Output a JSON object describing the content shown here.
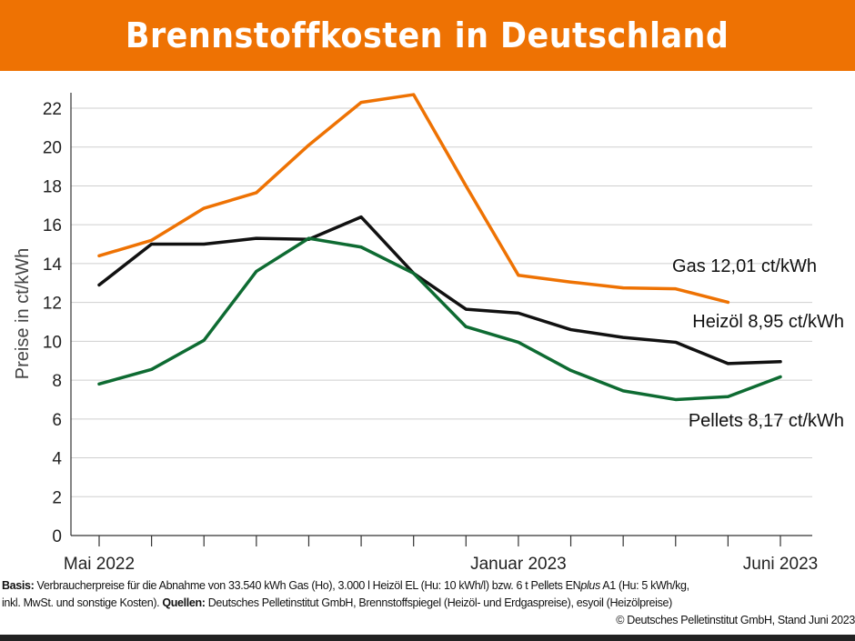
{
  "title": "Brennstoffkosten in Deutschland",
  "colors": {
    "header": "#ee7203",
    "gas": "#ee7203",
    "heizoel": "#111111",
    "pellets": "#0e6b32",
    "grid": "#cfcfcf"
  },
  "chart_data": {
    "type": "line",
    "title": "Brennstoffkosten in Deutschland",
    "ylabel": "Preise in ct/kWh",
    "xlabel": "",
    "ylim": [
      0,
      22.7
    ],
    "yticks": [
      0,
      2,
      4,
      6,
      8,
      10,
      12,
      14,
      16,
      18,
      20,
      22
    ],
    "grid": true,
    "x": [
      "2022-05",
      "2022-06",
      "2022-07",
      "2022-08",
      "2022-09",
      "2022-10",
      "2022-11",
      "2022-12",
      "2023-01",
      "2023-02",
      "2023-03",
      "2023-04",
      "2023-05",
      "2023-06"
    ],
    "xtick_labels": [
      {
        "index": 0,
        "label": "Mai 2022"
      },
      {
        "index": 8,
        "label": "Januar 2023"
      },
      {
        "index": 13,
        "label": "Juni 2023"
      }
    ],
    "series": [
      {
        "name": "Gas",
        "key": "gas",
        "label": "Gas 12,01 ct/kWh",
        "values": [
          14.4,
          15.2,
          16.85,
          17.65,
          20.1,
          22.3,
          22.7,
          18.0,
          13.4,
          13.05,
          12.75,
          12.7,
          12.01,
          null
        ]
      },
      {
        "name": "Heizöl",
        "key": "heizoel",
        "label": "Heizöl  8,95 ct/kWh",
        "values": [
          12.9,
          15.0,
          15.0,
          15.3,
          15.25,
          16.4,
          13.5,
          11.65,
          11.45,
          10.6,
          10.2,
          9.95,
          8.85,
          8.95
        ]
      },
      {
        "name": "Pellets",
        "key": "pellets",
        "label": "Pellets  8,17 ct/kWh",
        "values": [
          7.8,
          8.55,
          10.05,
          13.6,
          15.3,
          14.85,
          13.5,
          10.75,
          9.95,
          8.5,
          7.45,
          7.0,
          7.15,
          8.17
        ]
      }
    ]
  },
  "footnote": {
    "basis_label": "Basis:",
    "basis_text": " Verbraucherpreise für die Abnahme von 33.540 kWh Gas (Ho), 3.000 l Heizöl EL (Hu: 10 kWh/l) bzw. 6 t Pellets EN",
    "plus": "plus",
    "basis_text2": " A1 (Hu: 5 kWh/kg,",
    "line2_text": "inkl. MwSt. und sonstige Kosten). ",
    "quellen_label": "Quellen:",
    "quellen_text": " Deutsches Pelletinstitut GmbH, Brennstoffspiegel (Heizöl- und Erdgaspreise), esyoil (Heizölpreise)",
    "copyright": "© Deutsches Pelletinstitut GmbH, Stand Juni 2023"
  }
}
